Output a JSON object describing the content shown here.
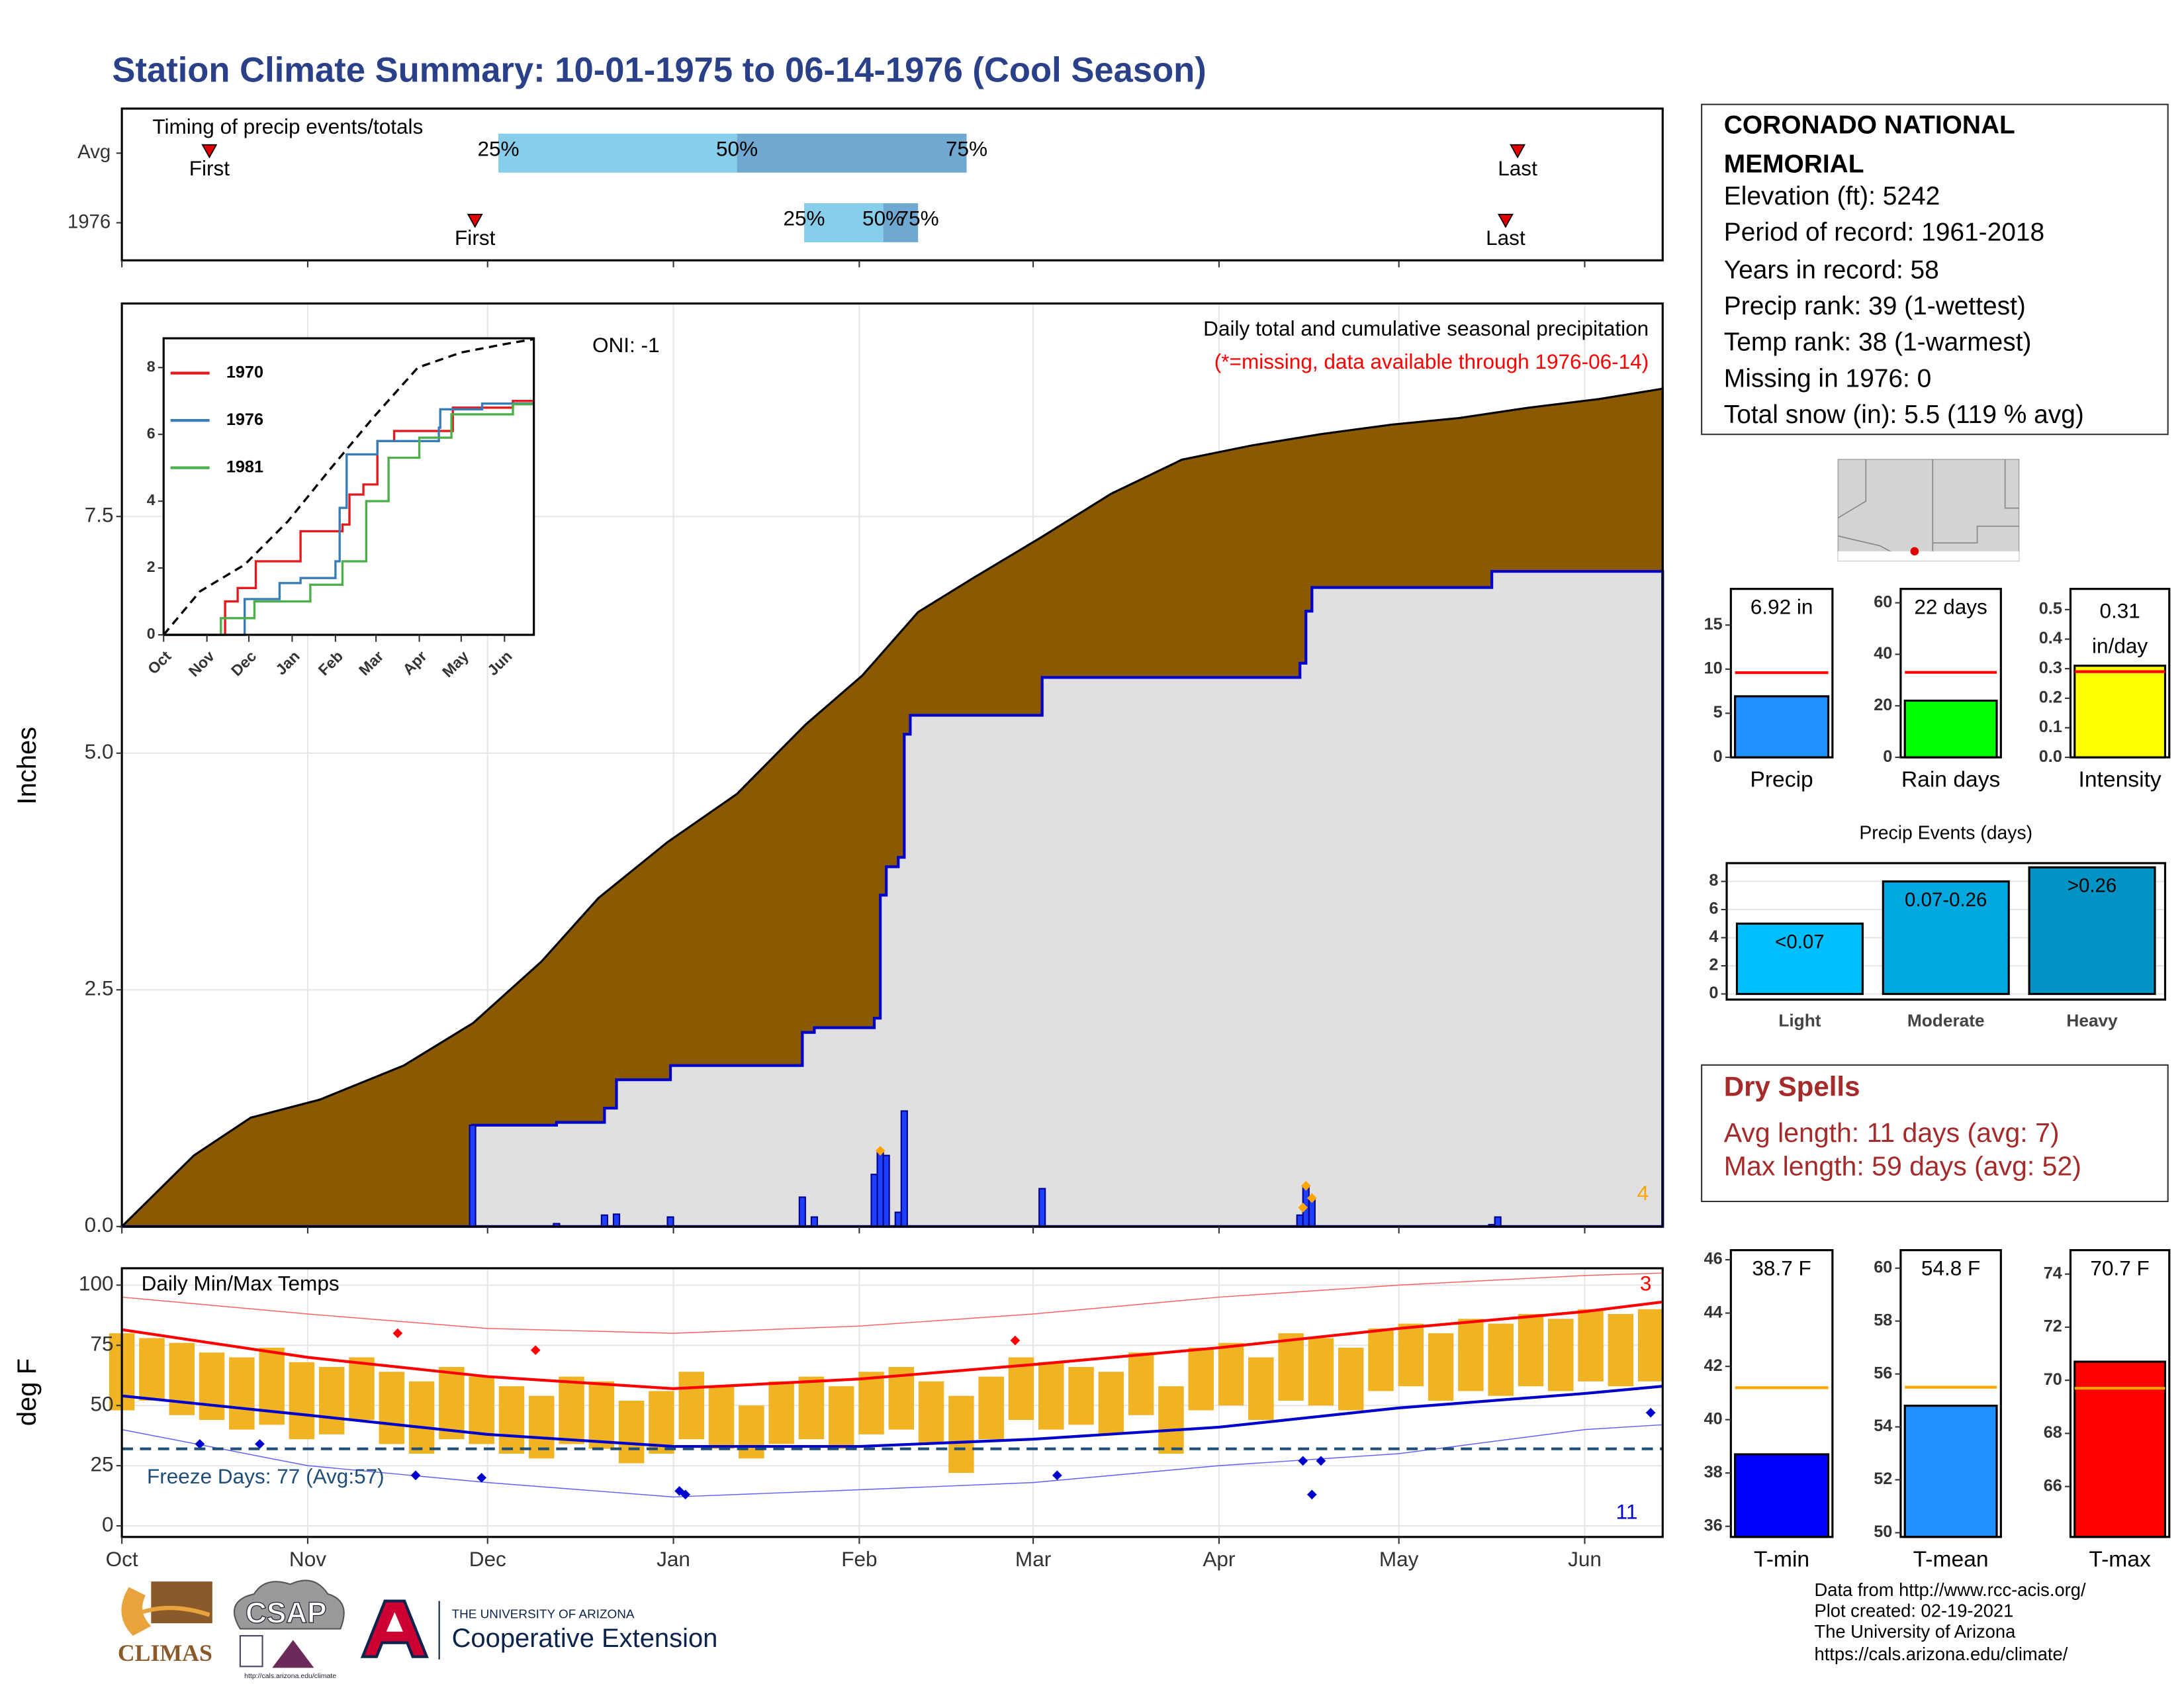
{
  "title": "Station Climate Summary: 10-01-1975 to 06-14-1976 (Cool Season)",
  "chart_data": [
    {
      "type": "timing",
      "title": "Timing of precip events/totals",
      "xlim": [
        0,
        257
      ],
      "xticks": [
        0,
        31,
        61,
        92,
        123,
        152,
        183,
        213,
        244
      ],
      "marker_labels": [
        "First",
        "Last"
      ],
      "quantile_labels": [
        "25%",
        "50%",
        "75%"
      ],
      "colors": [
        "#87ceeb",
        "#6fa8d0"
      ],
      "marker_color": "#e00000",
      "rows": [
        {
          "label": "Avg",
          "first": 14.6,
          "last": 232.8,
          "quantiles": [
            62.8,
            102.6,
            140.9
          ]
        },
        {
          "label": "1976",
          "first": 58.9,
          "last": 230.8,
          "quantiles": [
            113.8,
            127,
            132.8
          ]
        }
      ]
    },
    {
      "type": "area",
      "ylabel": "Inches",
      "xlim": [
        0,
        257
      ],
      "ylim": [
        0,
        9.75
      ],
      "xticks": [
        0,
        31,
        61,
        92,
        123,
        152,
        183,
        213,
        244
      ],
      "yticks": [
        {
          "value": 0,
          "label": "0.0"
        },
        {
          "value": 2.5,
          "label": "2.5"
        },
        {
          "value": 5,
          "label": "5.0"
        },
        {
          "value": 7.5,
          "label": "7.5"
        }
      ],
      "grid": true,
      "annotations": [
        {
          "text": "ONI: -1",
          "color": "#000000"
        },
        {
          "text": "Daily total and cumulative seasonal precipitation",
          "color": "#000000"
        },
        {
          "text": "(*=missing, data available through 1976-06-14)",
          "color": "#ff0000"
        },
        {
          "text": "4",
          "color": "#ffa500"
        }
      ],
      "series": [
        {
          "style": "area",
          "color": "#8b5a00",
          "line_color": "#000000",
          "x": [
            0,
            12,
            21.5,
            33,
            47,
            58.6,
            70,
            79.5,
            91,
            102.6,
            114,
            123.5,
            132.8,
            142,
            153.6,
            165,
            176.8,
            188.4,
            200,
            211.7,
            223,
            234.7,
            246.3,
            257
          ],
          "values": [
            0,
            0.75,
            1.15,
            1.34,
            1.7,
            2.15,
            2.8,
            3.47,
            4.06,
            4.57,
            5.3,
            5.82,
            6.49,
            6.85,
            7.29,
            7.74,
            8.1,
            8.25,
            8.37,
            8.47,
            8.54,
            8.65,
            8.74,
            8.85
          ]
        },
        {
          "style": "step",
          "color": "#e0e0e0",
          "line_color": "#0000cd",
          "x": [
            0,
            58.5,
            72.5,
            80.5,
            82.5,
            91.5,
            113.5,
            115.5,
            125.5,
            126.5,
            127.5,
            129.5,
            130.5,
            131.5,
            153.5,
            196.5,
            197.5,
            198.5,
            228.5,
            257
          ],
          "values": [
            0,
            1.07,
            1.1,
            1.25,
            1.55,
            1.7,
            2.05,
            2.1,
            2.2,
            3.5,
            3.8,
            3.9,
            5.2,
            5.4,
            5.8,
            5.95,
            6.5,
            6.75,
            6.92,
            6.92
          ]
        },
        {
          "style": "bar",
          "color": "#1f3fff",
          "line_color": "#00008b",
          "x": [
            58.5,
            72.5,
            80.5,
            82.5,
            91.5,
            113.5,
            115.5,
            125.5,
            126.5,
            127.5,
            129.5,
            130.5,
            153.5,
            196.5,
            197.5,
            198.5,
            228.5,
            229.5
          ],
          "values": [
            1.07,
            0.03,
            0.12,
            0.13,
            0.1,
            0.31,
            0.1,
            0.55,
            0.8,
            0.75,
            0.15,
            1.22,
            0.4,
            0.12,
            0.42,
            0.3,
            0.02,
            0.1
          ]
        },
        {
          "style": "marker",
          "color": "#ffa500",
          "x": [
            126.5,
            197,
            197.5,
            198.5
          ],
          "values": [
            0.8,
            0.2,
            0.43,
            0.3
          ]
        }
      ]
    },
    {
      "type": "line",
      "xlim": [
        0,
        265
      ],
      "ylim": [
        0,
        8.875
      ],
      "legend": "upper left",
      "xticks": [
        {
          "value": 0,
          "label": "Oct"
        },
        {
          "value": 31,
          "label": "Nov"
        },
        {
          "value": 61,
          "label": "Dec"
        },
        {
          "value": 92,
          "label": "Jan"
        },
        {
          "value": 123,
          "label": "Feb"
        },
        {
          "value": 152,
          "label": "Mar"
        },
        {
          "value": 183,
          "label": "Apr"
        },
        {
          "value": 213,
          "label": "May"
        },
        {
          "value": 244,
          "label": "Jun"
        }
      ],
      "yticks": [
        0,
        2,
        4,
        6,
        8
      ],
      "series": [
        {
          "style": "line",
          "dash": true,
          "color": "#000000",
          "x": [
            0,
            26,
            58,
            89,
            120,
            150,
            182,
            213,
            244,
            265
          ],
          "values": [
            0,
            1.3,
            2.1,
            3.4,
            5.0,
            6.5,
            8.0,
            8.45,
            8.7,
            8.85
          ]
        },
        {
          "name": "1970",
          "style": "step",
          "color": "#e41a1c",
          "x": [
            0,
            44,
            53,
            66,
            98,
            128,
            133,
            143,
            153,
            165,
            207,
            250,
            265
          ],
          "values": [
            0,
            1.0,
            1.4,
            2.2,
            3.1,
            3.3,
            4.2,
            4.5,
            5.8,
            6.1,
            6.8,
            7.0,
            7.0
          ]
        },
        {
          "name": "1976",
          "style": "step",
          "color": "#377eb8",
          "x": [
            0,
            58,
            83,
            98,
            123,
            126,
            131,
            153,
            197,
            198,
            228,
            265
          ],
          "values": [
            0,
            1.07,
            1.55,
            1.7,
            2.2,
            3.8,
            5.4,
            5.8,
            6.2,
            6.75,
            6.92,
            6.92
          ]
        },
        {
          "name": "1981",
          "style": "step",
          "color": "#4daf4a",
          "x": [
            0,
            41,
            65,
            105,
            128,
            145,
            161,
            183,
            206,
            250,
            265
          ],
          "values": [
            0,
            0.5,
            1.0,
            1.5,
            2.2,
            4.0,
            5.3,
            5.9,
            6.6,
            6.9,
            6.9
          ]
        }
      ]
    },
    {
      "type": "bar",
      "categories": [
        "Precip"
      ],
      "values": [
        6.92
      ],
      "value_labels": [
        "6.92 in"
      ],
      "averages": [
        9.6
      ],
      "average_color": "#ff0000",
      "colors": [
        "#1e90ff"
      ],
      "ylim": [
        0,
        19.1
      ],
      "yticks": [
        0,
        5,
        10,
        15
      ]
    },
    {
      "type": "bar",
      "categories": [
        "Rain days"
      ],
      "values": [
        22
      ],
      "value_labels": [
        "22 days"
      ],
      "averages": [
        33
      ],
      "average_color": "#ff0000",
      "colors": [
        "#00ff00"
      ],
      "ylim": [
        0,
        65.4
      ],
      "yticks": [
        0,
        20,
        40,
        60
      ]
    },
    {
      "type": "bar",
      "categories": [
        "Intensity"
      ],
      "values": [
        0.31
      ],
      "value_labels": [
        [
          "0.31",
          "in/day"
        ]
      ],
      "averages": [
        0.29
      ],
      "average_color": "#ff0000",
      "colors": [
        "#ffff00"
      ],
      "ylim": [
        0,
        0.57
      ],
      "yticks": [
        {
          "value": 0,
          "label": "0.0"
        },
        0.1,
        0.2,
        0.3,
        0.4,
        0.5
      ]
    },
    {
      "type": "bar",
      "title": "Precip Events (days)",
      "categories": [
        "Light",
        "Moderate",
        "Heavy"
      ],
      "bin_labels": [
        "<0.07",
        "0.07-0.26",
        ">0.26"
      ],
      "values": [
        5,
        8,
        9
      ],
      "colors": [
        "#00bfff",
        "#00a8e0",
        "#0093c4"
      ],
      "ylim": [
        -0.4,
        9.3
      ],
      "yticks": [
        0,
        2,
        4,
        6,
        8
      ],
      "grid": true
    },
    {
      "type": "temperature",
      "ylabel": "deg F",
      "xlim": [
        0,
        257
      ],
      "ylim": [
        -4.6,
        107
      ],
      "grid": true,
      "xticks": [
        {
          "value": 0,
          "label": "Oct"
        },
        {
          "value": 31,
          "label": "Nov"
        },
        {
          "value": 61,
          "label": "Dec"
        },
        {
          "value": 92,
          "label": "Jan"
        },
        {
          "value": 123,
          "label": "Feb"
        },
        {
          "value": 152,
          "label": "Mar"
        },
        {
          "value": 183,
          "label": "Apr"
        },
        {
          "value": 213,
          "label": "May"
        },
        {
          "value": 244,
          "label": "Jun"
        }
      ],
      "yticks": [
        0,
        25,
        50,
        75,
        100
      ],
      "freeze": {
        "value": 32,
        "color": "#1f4e79"
      },
      "annotations": [
        {
          "text": "Daily Min/Max Temps",
          "color": "#000000"
        },
        {
          "text": "Freeze Days: 77 (Avg:57)",
          "color": "#1f4e79"
        },
        {
          "text": "3",
          "color": "#ff0000"
        },
        {
          "text": "11",
          "color": "#0000cd"
        }
      ],
      "series": [
        {
          "style": "range",
          "color": "#f0b323",
          "x": [
            0,
            5,
            10,
            15,
            20,
            25,
            30,
            35,
            40,
            45,
            50,
            55,
            60,
            65,
            70,
            75,
            80,
            85,
            90,
            95,
            100,
            105,
            110,
            115,
            120,
            125,
            130,
            135,
            140,
            145,
            150,
            155,
            160,
            165,
            170,
            175,
            180,
            185,
            190,
            195,
            200,
            205,
            210,
            215,
            220,
            225,
            230,
            235,
            240,
            245,
            250,
            255
          ],
          "min": [
            48,
            52,
            46,
            44,
            40,
            42,
            36,
            38,
            44,
            34,
            30,
            36,
            34,
            30,
            28,
            34,
            32,
            26,
            30,
            36,
            32,
            28,
            34,
            36,
            32,
            38,
            40,
            34,
            22,
            36,
            44,
            40,
            42,
            38,
            46,
            30,
            48,
            50,
            44,
            52,
            50,
            48,
            56,
            58,
            52,
            56,
            54,
            58,
            56,
            60,
            58,
            60
          ],
          "max": [
            80,
            78,
            76,
            72,
            70,
            74,
            68,
            66,
            70,
            64,
            60,
            66,
            62,
            58,
            54,
            62,
            60,
            52,
            56,
            64,
            58,
            50,
            60,
            62,
            58,
            64,
            66,
            60,
            54,
            62,
            70,
            68,
            66,
            64,
            72,
            58,
            74,
            76,
            70,
            80,
            78,
            74,
            82,
            84,
            80,
            86,
            84,
            88,
            86,
            90,
            88,
            90
          ]
        },
        {
          "style": "line",
          "color": "#ff6060",
          "line_width": 0.7,
          "x": [
            0,
            31,
            61,
            92,
            123,
            152,
            183,
            213,
            244,
            257
          ],
          "values": [
            95,
            88,
            82,
            80,
            83,
            88,
            95,
            100,
            104,
            105
          ]
        },
        {
          "style": "line",
          "color": "#6060ff",
          "line_width": 0.7,
          "x": [
            0,
            31,
            61,
            92,
            123,
            152,
            183,
            213,
            244,
            257
          ],
          "values": [
            40,
            25,
            18,
            12,
            15,
            18,
            25,
            30,
            40,
            42
          ]
        },
        {
          "style": "line",
          "color": "#ff0000",
          "line_width": 2,
          "x": [
            0,
            31,
            61,
            92,
            123,
            152,
            183,
            213,
            244,
            257
          ],
          "values": [
            81.5,
            70,
            62,
            57,
            61,
            67,
            74,
            82,
            89,
            93
          ]
        },
        {
          "style": "line",
          "color": "#0000cd",
          "line_width": 2,
          "x": [
            0,
            31,
            61,
            92,
            123,
            152,
            183,
            213,
            244,
            257
          ],
          "values": [
            54,
            46,
            38,
            33,
            33,
            36,
            41,
            49,
            55,
            58
          ]
        },
        {
          "style": "marker",
          "color": "#ff0000",
          "x": [
            46,
            69,
            149
          ],
          "values": [
            80,
            73,
            77
          ]
        },
        {
          "style": "marker",
          "color": "#0000cd",
          "x": [
            13,
            23,
            49,
            60,
            93,
            94,
            156,
            197,
            198.5,
            200,
            255
          ],
          "values": [
            34,
            34,
            21,
            20,
            14.5,
            13,
            21,
            27,
            13,
            27,
            47
          ]
        }
      ]
    },
    {
      "type": "bar",
      "categories": [
        "T-min"
      ],
      "values": [
        38.7
      ],
      "value_labels": [
        "38.7 F"
      ],
      "averages": [
        41.2
      ],
      "average_color": "#ffa500",
      "colors": [
        "#0000ff"
      ],
      "ylim": [
        35.6,
        46.36
      ],
      "yticks": [
        36,
        38,
        40,
        42,
        44,
        46
      ]
    },
    {
      "type": "bar",
      "categories": [
        "T-mean"
      ],
      "values": [
        54.8
      ],
      "value_labels": [
        "54.8 F"
      ],
      "averages": [
        55.5
      ],
      "average_color": "#ffa500",
      "colors": [
        "#1e90ff"
      ],
      "ylim": [
        49.84,
        60.68
      ],
      "yticks": [
        50,
        52,
        54,
        56,
        58,
        60
      ]
    },
    {
      "type": "bar",
      "categories": [
        "T-max"
      ],
      "values": [
        70.7
      ],
      "value_labels": [
        "70.7 F"
      ],
      "averages": [
        69.7
      ],
      "average_color": "#ffa500",
      "colors": [
        "#ff0000"
      ],
      "ylim": [
        64.1,
        74.9
      ],
      "yticks": [
        66,
        68,
        70,
        72,
        74
      ]
    }
  ],
  "station": {
    "name_lines": [
      "CORONADO NATIONAL",
      "MEMORIAL"
    ],
    "lines": [
      "Elevation (ft): 5242",
      "Period of record: 1961-2018",
      "Years in record: 58",
      "Precip rank: 39 (1-wettest)",
      "Temp rank: 38 (1-warmest)",
      "Missing in 1976: 0",
      "Total snow (in): 5.5 (119 % avg)"
    ]
  },
  "dry_spells": {
    "title": "Dry Spells",
    "lines": [
      "Avg length: 11 days (avg: 7)",
      "Max length: 59 days (avg: 52)"
    ]
  },
  "logos": {
    "climas": "CLIMAS",
    "csap": "CSAP",
    "csap_url": "http://cals.arizona.edu/climate",
    "university": "THE UNIVERSITY OF ARIZONA",
    "extension": "Cooperative Extension"
  },
  "credits": [
    "Data from http://www.rcc-acis.org/",
    "Plot created: 02-19-2021",
    "The University of Arizona",
    "https://cals.arizona.edu/climate/"
  ]
}
